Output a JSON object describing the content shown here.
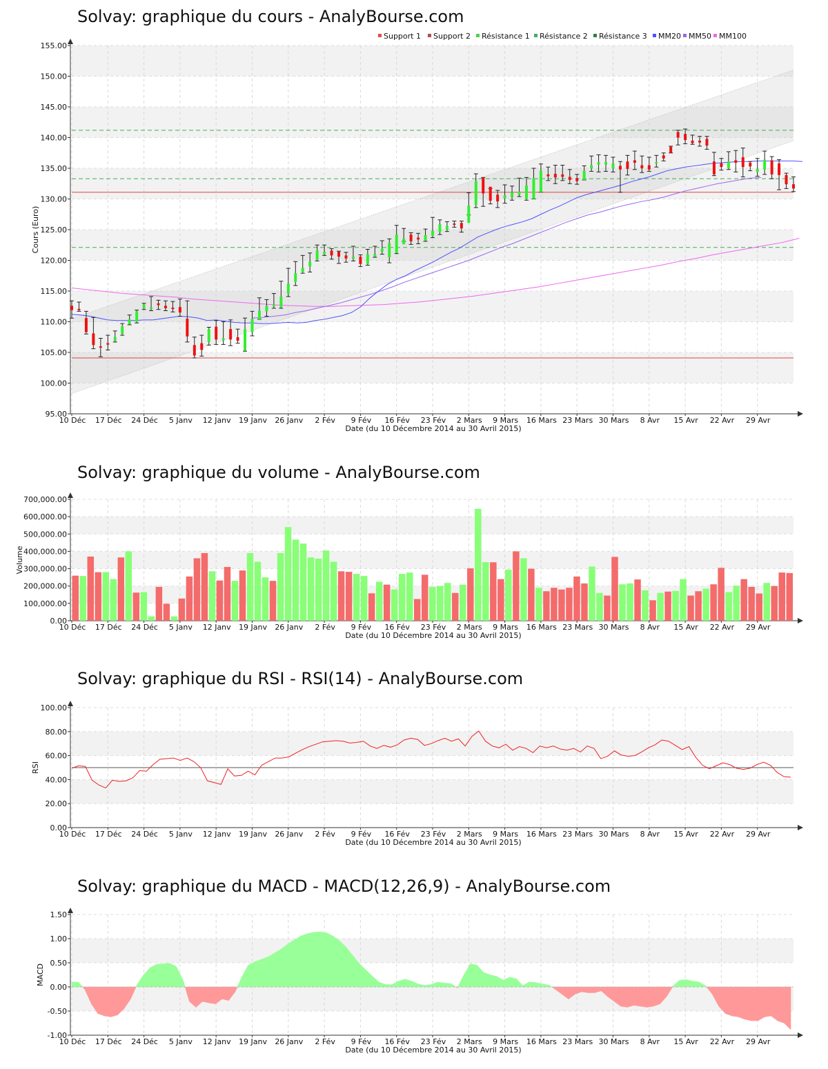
{
  "chart_data": [
    {
      "type": "candlestick",
      "title": "Solvay: graphique du cours - AnalyBourse.com",
      "xlabel": "Date (du 10 Décembre 2014 au 30 Avril 2015)",
      "ylabel": "Cours (Euro)",
      "ylim": [
        95,
        155
      ],
      "yticks": [
        "95.00",
        "100.00",
        "105.00",
        "110.00",
        "115.00",
        "120.00",
        "125.00",
        "130.00",
        "135.00",
        "140.00",
        "145.00",
        "150.00",
        "155.00"
      ],
      "xtick_labels": [
        "10 Déc",
        "17 Déc",
        "24 Déc",
        "5 Janv",
        "12 Janv",
        "19 Janv",
        "26 Janv",
        "2 Fév",
        "9 Fév",
        "16 Fév",
        "23 Fév",
        "2 Mars",
        "9 Mars",
        "16 Mars",
        "23 Mars",
        "30 Mars",
        "8 Avr",
        "15 Avr",
        "22 Avr",
        "29 Avr"
      ],
      "xtick_index": [
        0,
        5,
        10,
        15,
        20,
        25,
        30,
        35,
        40,
        45,
        50,
        55,
        60,
        65,
        70,
        75,
        80,
        85,
        90,
        95
      ],
      "grid": true,
      "legend_position": "top-right",
      "legend": [
        {
          "name": "Support 1",
          "color": "#e05050"
        },
        {
          "name": "Support 2",
          "color": "#b05050"
        },
        {
          "name": "Résistance 1",
          "color": "#50d050"
        },
        {
          "name": "Résistance 2",
          "color": "#40b060"
        },
        {
          "name": "Résistance 3",
          "color": "#308040"
        },
        {
          "name": "MM20",
          "color": "#5050ff"
        },
        {
          "name": "MM50",
          "color": "#9966ee"
        },
        {
          "name": "MM100",
          "color": "#ee66ee"
        }
      ],
      "support_levels": [
        131.1,
        104.1
      ],
      "resistance_levels": [
        141.2,
        133.3,
        122.1
      ],
      "trend_channel": {
        "lower": [
          98.3,
          139.5
        ],
        "upper": [
          110.5,
          151.0
        ]
      },
      "candles_open": [
        112.6,
        112.1,
        110.6,
        108.1,
        106.0,
        106.5,
        106.9,
        108.0,
        109.6,
        110.0,
        112.2,
        112.3,
        113.0,
        112.6,
        112.3,
        112.4,
        110.5,
        106.2,
        106.5,
        106.7,
        109.2,
        107.0,
        108.8,
        107.5,
        105.3,
        108.3,
        110.4,
        111.7,
        112.5,
        112.4,
        114.6,
        116.5,
        118.1,
        119.0,
        120.1,
        121.0,
        121.6,
        121.4,
        120.8,
        120.3,
        120.6,
        119.4,
        120.6,
        121.4,
        120.5,
        121.2,
        122.6,
        124.2,
        123.7,
        123.2,
        124.0,
        124.6,
        125.0,
        126.0,
        126.1,
        126.1,
        129.0,
        133.5,
        132.0,
        130.7,
        130.1,
        130.3,
        130.7,
        130.0,
        130.0,
        131.1,
        134.0,
        134.1,
        134.0,
        133.6,
        133.4,
        133.1,
        135.0,
        135.6,
        135.6,
        135.0,
        135.4,
        136.1,
        136.3,
        135.5,
        135.5,
        136.0,
        137.1,
        138.5,
        140.9,
        140.6,
        139.5,
        139.5,
        139.8,
        136.1,
        135.8,
        135.0,
        136.3,
        136.8,
        135.9,
        134.4,
        134.8,
        136.3,
        135.8,
        133.9,
        132.4
      ],
      "candles_close": [
        111.9,
        112.0,
        108.3,
        106.2,
        105.9,
        106.3,
        107.5,
        109.3,
        110.4,
        111.7,
        112.8,
        112.3,
        112.7,
        112.2,
        112.1,
        111.5,
        107.6,
        104.5,
        105.4,
        108.8,
        107.1,
        107.3,
        107.1,
        106.9,
        108.8,
        110.5,
        111.8,
        112.6,
        112.8,
        114.1,
        116.2,
        117.9,
        118.8,
        119.8,
        121.6,
        121.4,
        120.8,
        120.6,
        120.3,
        120.6,
        119.4,
        121.0,
        121.0,
        121.9,
        122.8,
        124.2,
        123.5,
        123.1,
        123.4,
        124.1,
        124.8,
        125.9,
        125.6,
        125.9,
        125.2,
        128.9,
        132.9,
        130.9,
        129.7,
        129.6,
        130.6,
        131.1,
        131.2,
        132.2,
        133.4,
        134.6,
        133.7,
        133.5,
        133.6,
        133.1,
        132.9,
        134.6,
        135.5,
        136.0,
        136.0,
        135.8,
        134.8,
        134.9,
        135.9,
        135.0,
        134.8,
        136.0,
        136.6,
        137.5,
        140.0,
        139.6,
        139.1,
        139.2,
        138.7,
        134.0,
        135.2,
        136.1,
        135.9,
        135.2,
        135.3,
        134.9,
        136.4,
        134.0,
        133.9,
        132.4,
        131.7
      ],
      "candles_high": [
        113.4,
        113.2,
        111.7,
        110.7,
        107.3,
        107.8,
        108.5,
        109.7,
        111.1,
        111.9,
        113.0,
        114.1,
        113.5,
        113.4,
        113.3,
        113.7,
        113.4,
        107.5,
        107.8,
        109.1,
        110.2,
        110.0,
        110.3,
        108.8,
        110.6,
        111.7,
        113.9,
        113.6,
        114.6,
        116.6,
        118.7,
        119.8,
        120.8,
        121.2,
        122.5,
        122.5,
        121.9,
        121.5,
        121.3,
        122.3,
        120.9,
        121.8,
        122.3,
        123.2,
        123.5,
        125.7,
        125.2,
        124.5,
        124.4,
        125.1,
        127.0,
        126.6,
        126.3,
        126.4,
        126.4,
        131.0,
        134.1,
        133.5,
        131.7,
        131.4,
        132.3,
        132.1,
        133.4,
        133.5,
        135.0,
        135.7,
        135.2,
        135.5,
        135.5,
        134.8,
        134.0,
        135.4,
        137.0,
        137.2,
        137.1,
        136.8,
        136.1,
        137.1,
        137.8,
        137.0,
        136.8,
        137.1,
        137.5,
        138.6,
        141.2,
        141.4,
        140.4,
        140.2,
        140.2,
        137.6,
        136.6,
        137.7,
        137.9,
        138.3,
        136.1,
        136.6,
        137.8,
        136.9,
        136.4,
        134.2,
        133.6
      ],
      "candles_low": [
        110.6,
        111.7,
        108.0,
        105.6,
        104.3,
        105.4,
        106.7,
        107.8,
        109.5,
        109.8,
        112.0,
        111.8,
        112.0,
        111.8,
        111.6,
        110.9,
        106.7,
        104.1,
        104.4,
        106.2,
        106.3,
        106.3,
        106.1,
        106.5,
        105.2,
        107.7,
        110.4,
        110.9,
        112.2,
        112.2,
        114.1,
        115.9,
        117.9,
        118.1,
        119.9,
        120.8,
        120.2,
        119.5,
        119.7,
        119.9,
        119.0,
        119.2,
        120.5,
        121.0,
        119.6,
        121.1,
        123.1,
        122.6,
        122.7,
        123.1,
        123.7,
        124.2,
        124.7,
        125.4,
        124.6,
        127.4,
        128.6,
        128.8,
        129.2,
        128.6,
        129.3,
        129.8,
        130.4,
        129.8,
        130.0,
        131.1,
        133.0,
        132.5,
        133.0,
        132.5,
        132.4,
        133.1,
        134.5,
        134.4,
        134.5,
        134.4,
        131.1,
        133.9,
        134.8,
        134.3,
        134.5,
        135.2,
        136.2,
        137.5,
        138.8,
        139.0,
        138.9,
        138.6,
        138.1,
        133.8,
        134.7,
        134.8,
        134.4,
        133.6,
        134.6,
        133.7,
        134.0,
        133.3,
        131.5,
        131.7,
        131.2
      ],
      "mm20": [
        111.2,
        111.1,
        110.9,
        110.6,
        110.3,
        110.2,
        110.2,
        110.2,
        110.3,
        110.3,
        110.5,
        110.7,
        110.9,
        110.8,
        110.6,
        110.2,
        110.3,
        110.1,
        109.9,
        109.8,
        109.8,
        109.7,
        109.7,
        109.8,
        109.9,
        109.8,
        109.9,
        110.2,
        110.4,
        110.7,
        111.0,
        111.5,
        112.4,
        113.8,
        115.0,
        116.1,
        116.9,
        117.5,
        118.3,
        119.0,
        119.7,
        120.5,
        121.3,
        122.0,
        122.9,
        123.8,
        124.4,
        125.0,
        125.5,
        125.9,
        126.3,
        126.8,
        127.5,
        128.2,
        128.8,
        129.5,
        130.2,
        130.7,
        131.1,
        131.5,
        131.9,
        132.3,
        132.8,
        133.2,
        133.6,
        134.1,
        134.6,
        134.9,
        135.2,
        135.4,
        135.6,
        135.8,
        135.9,
        136.0,
        136.1,
        136.1,
        136.2,
        136.2,
        136.2,
        136.2,
        136.2,
        136.1
      ],
      "mm20_start": 0,
      "mm50": [
        110.6,
        110.7,
        110.9,
        111.1,
        111.5,
        111.8,
        112.2,
        112.6,
        113.0,
        113.5,
        114.0,
        114.5,
        115.1,
        115.7,
        116.4,
        117.0,
        117.6,
        118.2,
        118.8,
        119.4,
        120.0,
        120.7,
        121.4,
        122.1,
        122.7,
        123.4,
        124.1,
        124.8,
        125.5,
        126.2,
        126.8,
        127.4,
        127.8,
        128.3,
        128.8,
        129.2,
        129.6,
        129.9,
        130.3,
        130.8,
        131.3,
        131.7,
        132.1,
        132.5,
        132.8,
        133.1,
        133.4,
        133.5
      ],
      "mm50_start": 25,
      "mm100": [
        115.5,
        115.2,
        114.9,
        114.6,
        114.4,
        114.2,
        114.0,
        113.7,
        113.5,
        113.3,
        113.1,
        112.9,
        112.7,
        112.6,
        112.5,
        112.5,
        112.6,
        112.7,
        112.8,
        113.0,
        113.2,
        113.5,
        113.8,
        114.1,
        114.5,
        114.9,
        115.3,
        115.7,
        116.2,
        116.7,
        117.2,
        117.7,
        118.2,
        118.7,
        119.2,
        119.8,
        120.3,
        120.9,
        121.4,
        121.9,
        122.4,
        122.9,
        123.6
      ],
      "mm100_start": 0,
      "mm100_step": 2.4
    },
    {
      "type": "bar",
      "title": "Solvay: graphique du volume - AnalyBourse.com",
      "xlabel": "Date (du 10 Décembre 2014 au 30 Avril 2015)",
      "ylabel": "Volume",
      "ylim": [
        0,
        700000
      ],
      "yticks": [
        "0.00",
        "100,000.00",
        "200,000.00",
        "300,000.00",
        "400,000.00",
        "500,000.00",
        "600,000.00",
        "700,000.00"
      ],
      "grid": true,
      "values": [
        260000,
        258000,
        370000,
        280000,
        280000,
        240000,
        365000,
        400000,
        162000,
        165000,
        25000,
        195000,
        98000,
        25000,
        128000,
        255000,
        360000,
        390000,
        285000,
        232000,
        310000,
        230000,
        290000,
        390000,
        340000,
        250000,
        230000,
        390000,
        540000,
        468000,
        445000,
        365000,
        358000,
        405000,
        340000,
        285000,
        282000,
        270000,
        258000,
        158000,
        225000,
        208000,
        180000,
        270000,
        278000,
        125000,
        265000,
        195000,
        200000,
        218000,
        160000,
        208000,
        302000,
        645000,
        338000,
        337000,
        240000,
        295000,
        400000,
        360000,
        300000,
        190000,
        170000,
        190000,
        180000,
        190000,
        255000,
        215000,
        312000,
        160000,
        145000,
        368000,
        210000,
        215000,
        238000,
        175000,
        118000,
        160000,
        168000,
        172000,
        240000,
        145000,
        170000,
        185000,
        210000,
        305000,
        165000,
        202000,
        240000,
        195000,
        157000,
        218000,
        200000,
        278000,
        275000
      ],
      "colors": [
        "r",
        "g",
        "r",
        "r",
        "g",
        "g",
        "r",
        "g",
        "r",
        "g",
        "g",
        "r",
        "r",
        "g",
        "r",
        "r",
        "r",
        "r",
        "g",
        "r",
        "r",
        "g",
        "r",
        "g",
        "g",
        "g",
        "r",
        "g",
        "g",
        "g",
        "g",
        "g",
        "g",
        "g",
        "g",
        "r",
        "r",
        "g",
        "g",
        "r",
        "g",
        "r",
        "g",
        "g",
        "g",
        "r",
        "r",
        "g",
        "g",
        "g",
        "r",
        "g",
        "r",
        "g",
        "g",
        "r",
        "r",
        "g",
        "r",
        "g",
        "r",
        "g",
        "r",
        "r",
        "r",
        "r",
        "r",
        "r",
        "g",
        "g",
        "r",
        "r",
        "g",
        "g",
        "r",
        "g",
        "r",
        "g",
        "r",
        "g",
        "g",
        "r",
        "r",
        "g",
        "r",
        "r",
        "g",
        "g",
        "r",
        "r",
        "r",
        "g",
        "r",
        "r",
        "r"
      ]
    },
    {
      "type": "line",
      "title": "Solvay: graphique du RSI - RSI(14) - AnalyBourse.com",
      "xlabel": "Date (du 10 Décembre 2014 au 30 Avril 2015)",
      "ylabel": "RSI",
      "ylim": [
        0,
        100
      ],
      "yticks": [
        "0.00",
        "20.00",
        "40.00",
        "60.00",
        "80.00",
        "100.00"
      ],
      "grid": true,
      "reference_line": 50,
      "values": [
        49.5,
        51.5,
        51.0,
        39.5,
        35.5,
        33.0,
        39.5,
        38.5,
        39.0,
        41.5,
        47.5,
        47.0,
        52.5,
        57.0,
        57.5,
        58.0,
        56.0,
        58.0,
        55.0,
        50.0,
        39.0,
        37.5,
        36.0,
        49.0,
        43.0,
        43.5,
        47.0,
        44.0,
        52.0,
        55.0,
        58.0,
        58.0,
        59.0,
        62.0,
        65.0,
        67.5,
        69.5,
        71.5,
        72.0,
        72.5,
        72.0,
        70.5,
        71.0,
        72.0,
        68.0,
        66.0,
        68.5,
        67.0,
        69.0,
        73.0,
        74.5,
        73.5,
        68.5,
        70.0,
        72.5,
        74.5,
        72.0,
        74.0,
        68.0,
        76.0,
        80.5,
        72.0,
        68.0,
        66.5,
        69.5,
        64.5,
        67.5,
        66.0,
        62.5,
        68.0,
        66.5,
        68.0,
        65.5,
        64.5,
        66.0,
        63.0,
        68.0,
        66.0,
        57.5,
        59.5,
        64.0,
        60.5,
        59.5,
        60.0,
        63.0,
        66.5,
        69.0,
        73.0,
        72.0,
        68.5,
        65.0,
        67.5,
        58.5,
        52.0,
        49.0,
        51.5,
        54.0,
        52.5,
        49.5,
        48.5,
        49.5,
        52.5,
        54.5,
        52.0,
        46.0,
        42.5,
        42.0
      ]
    },
    {
      "type": "area",
      "title": "Solvay: graphique du MACD - MACD(12,26,9) - AnalyBourse.com",
      "xlabel": "Date (du 10 Décembre 2014 au 30 Avril 2015)",
      "ylabel": "MACD",
      "ylim": [
        -1.0,
        1.5
      ],
      "yticks": [
        "-1.00",
        "-0.50",
        "0.00",
        "0.50",
        "1.00",
        "1.50"
      ],
      "grid": true,
      "values": [
        0.1,
        0.1,
        -0.05,
        -0.35,
        -0.55,
        -0.6,
        -0.62,
        -0.58,
        -0.45,
        -0.25,
        0.05,
        0.25,
        0.4,
        0.47,
        0.48,
        0.49,
        0.42,
        0.15,
        -0.3,
        -0.42,
        -0.3,
        -0.33,
        -0.35,
        -0.25,
        -0.28,
        -0.1,
        0.2,
        0.45,
        0.52,
        0.57,
        0.62,
        0.7,
        0.78,
        0.88,
        0.97,
        1.05,
        1.1,
        1.13,
        1.14,
        1.12,
        1.05,
        0.95,
        0.82,
        0.65,
        0.48,
        0.35,
        0.22,
        0.1,
        0.05,
        0.05,
        0.12,
        0.16,
        0.12,
        0.06,
        0.03,
        0.05,
        0.1,
        0.08,
        0.07,
        -0.02,
        0.25,
        0.48,
        0.45,
        0.3,
        0.25,
        0.22,
        0.14,
        0.2,
        0.17,
        0.03,
        0.1,
        0.09,
        0.06,
        0.04,
        -0.05,
        -0.15,
        -0.25,
        -0.15,
        -0.1,
        -0.12,
        -0.12,
        -0.08,
        -0.2,
        -0.3,
        -0.4,
        -0.42,
        -0.38,
        -0.4,
        -0.42,
        -0.4,
        -0.35,
        -0.2,
        0.02,
        0.14,
        0.15,
        0.12,
        0.1,
        0.02,
        -0.15,
        -0.4,
        -0.55,
        -0.6,
        -0.62,
        -0.67,
        -0.7,
        -0.7,
        -0.62,
        -0.6,
        -0.7,
        -0.75,
        -0.88
      ]
    }
  ]
}
